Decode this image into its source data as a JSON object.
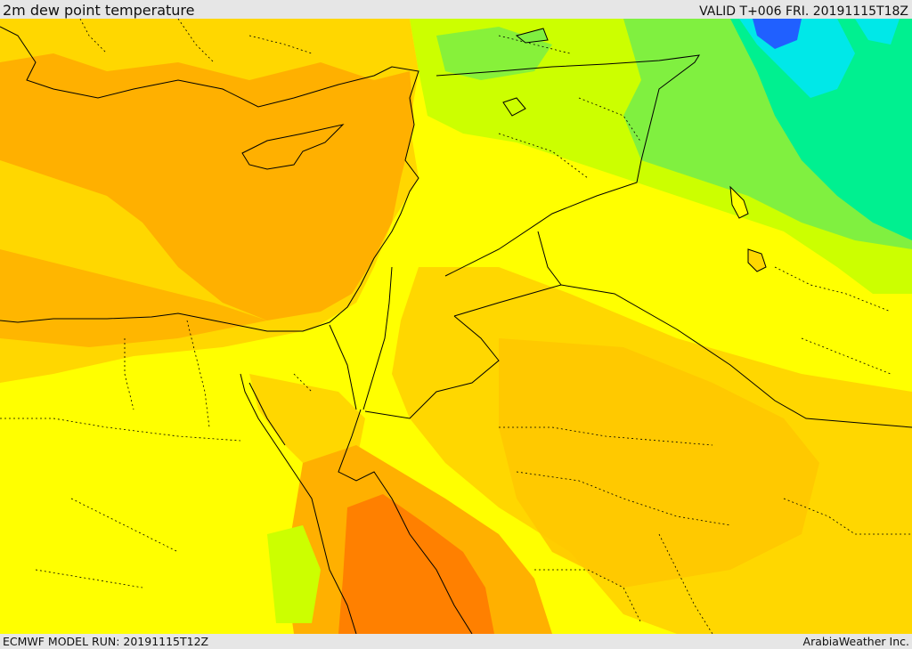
{
  "header": {
    "title": "2m dew point temperature",
    "valid_time": "VALID T+006 FRI. 20191115T18Z"
  },
  "footer": {
    "model_run": "ECMWF MODEL RUN: 20191115T12Z",
    "credit": "ArabiaWeather Inc."
  },
  "map": {
    "field": "2m dew point temperature",
    "colors": {
      "yellow": "#ffff00",
      "light_orange": "#ffd700",
      "orange": "#ffb000",
      "deep_orange": "#ff8000",
      "yellow_green": "#ccff00",
      "green": "#80f040",
      "teal": "#00f090",
      "cyan": "#00e8e8",
      "blue": "#2060ff",
      "border": "#000000"
    }
  }
}
